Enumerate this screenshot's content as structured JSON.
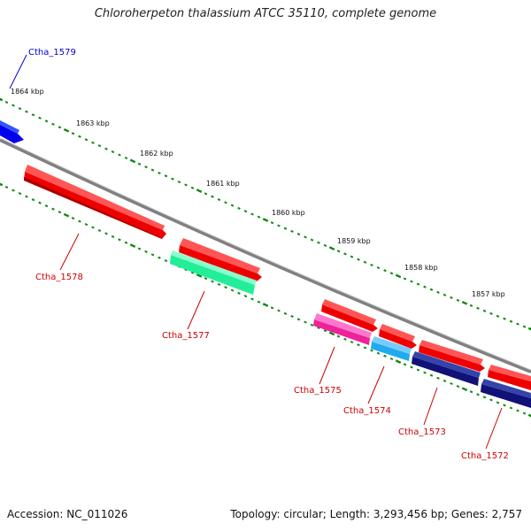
{
  "title": "Chloroherpeton thalassium ATCC 35110, complete genome",
  "footer": {
    "accession": "Accession: NC_011026",
    "summary": "Topology: circular; Length: 3,293,456 bp; Genes: 2,757"
  },
  "scale_labels": [
    "1864 kbp",
    "1863 kbp",
    "1862 kbp",
    "1861 kbp",
    "1860 kbp",
    "1859 kbp",
    "1858 kbp",
    "1857 kbp"
  ],
  "genes": [
    {
      "id": "Ctha_1579",
      "label": "Ctha_1579",
      "color": "#0000ee",
      "label_color": "#0000cc"
    },
    {
      "id": "Ctha_1578",
      "label": "Ctha_1578",
      "color": "#ff0000",
      "label_color": "#cc0000"
    },
    {
      "id": "Ctha_1577",
      "label": "Ctha_1577",
      "color": "#22ee99",
      "label_color": "#cc0000"
    },
    {
      "id": "Ctha_1575",
      "label": "Ctha_1575",
      "color": "#ee2299",
      "label_color": "#cc0000"
    },
    {
      "id": "Ctha_1574",
      "label": "Ctha_1574",
      "color": "#22aaee",
      "label_color": "#cc0000"
    },
    {
      "id": "Ctha_1573",
      "label": "Ctha_1573",
      "color": "#111177",
      "label_color": "#cc0000"
    },
    {
      "id": "Ctha_1572",
      "label": "Ctha_1572",
      "color": "#111177",
      "label_color": "#cc0000"
    }
  ],
  "colors": {
    "backbone": "#808080",
    "ticks": "#118811",
    "forward_gene": "#ff0000"
  }
}
